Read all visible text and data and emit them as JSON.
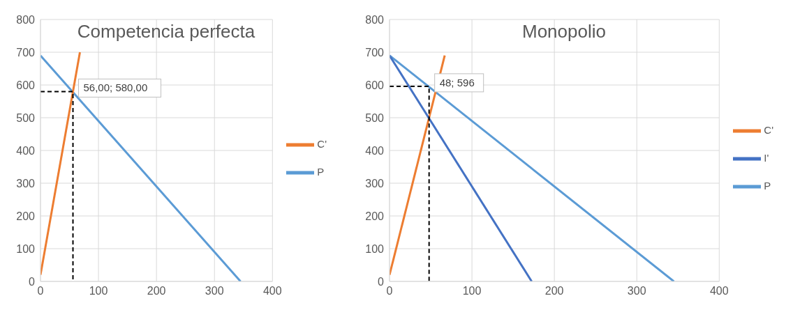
{
  "chart_data": [
    {
      "type": "line",
      "title": "Competencia perfecta",
      "xlim": [
        0,
        400
      ],
      "xticks": [
        0,
        100,
        200,
        300,
        400
      ],
      "ylim": [
        0,
        800
      ],
      "yticks": [
        0,
        100,
        200,
        300,
        400,
        500,
        600,
        700,
        800
      ],
      "grid": true,
      "legend": "right",
      "marker": "none",
      "series": [
        {
          "name": "P",
          "color": "#5b9bd5",
          "x": [
            0,
            345
          ],
          "values": [
            690,
            0
          ]
        },
        {
          "name": "C'",
          "color": "#ed7d31",
          "x": [
            0,
            68
          ],
          "values": [
            20,
            700
          ]
        },
        {
          "color": "#000000",
          "line_style": "dashed",
          "x": [
            0,
            56,
            56
          ],
          "values": [
            580,
            580,
            0
          ]
        }
      ],
      "annotations": [
        {
          "text": "56,00; 580,00",
          "x": 56,
          "y": 580
        }
      ]
    },
    {
      "type": "line",
      "title": "Monopolio",
      "xlim": [
        0,
        400
      ],
      "xticks": [
        0,
        100,
        200,
        300,
        400
      ],
      "ylim": [
        0,
        800
      ],
      "yticks": [
        0,
        100,
        200,
        300,
        400,
        500,
        600,
        700,
        800
      ],
      "grid": true,
      "legend": "right",
      "marker": "none",
      "series": [
        {
          "name": "P",
          "color": "#5b9bd5",
          "x": [
            0,
            345
          ],
          "values": [
            690,
            0
          ]
        },
        {
          "name": "C'",
          "color": "#ed7d31",
          "x": [
            0,
            67
          ],
          "values": [
            20,
            690
          ]
        },
        {
          "name": "I'",
          "color": "#4472c4",
          "x": [
            0,
            172.5
          ],
          "values": [
            690,
            0
          ]
        },
        {
          "color": "#000000",
          "line_style": "dashed",
          "x": [
            0,
            48,
            48
          ],
          "values": [
            596,
            596,
            0
          ]
        }
      ],
      "annotations": [
        {
          "text": "48; 596",
          "x": 48,
          "y": 596
        }
      ]
    }
  ]
}
